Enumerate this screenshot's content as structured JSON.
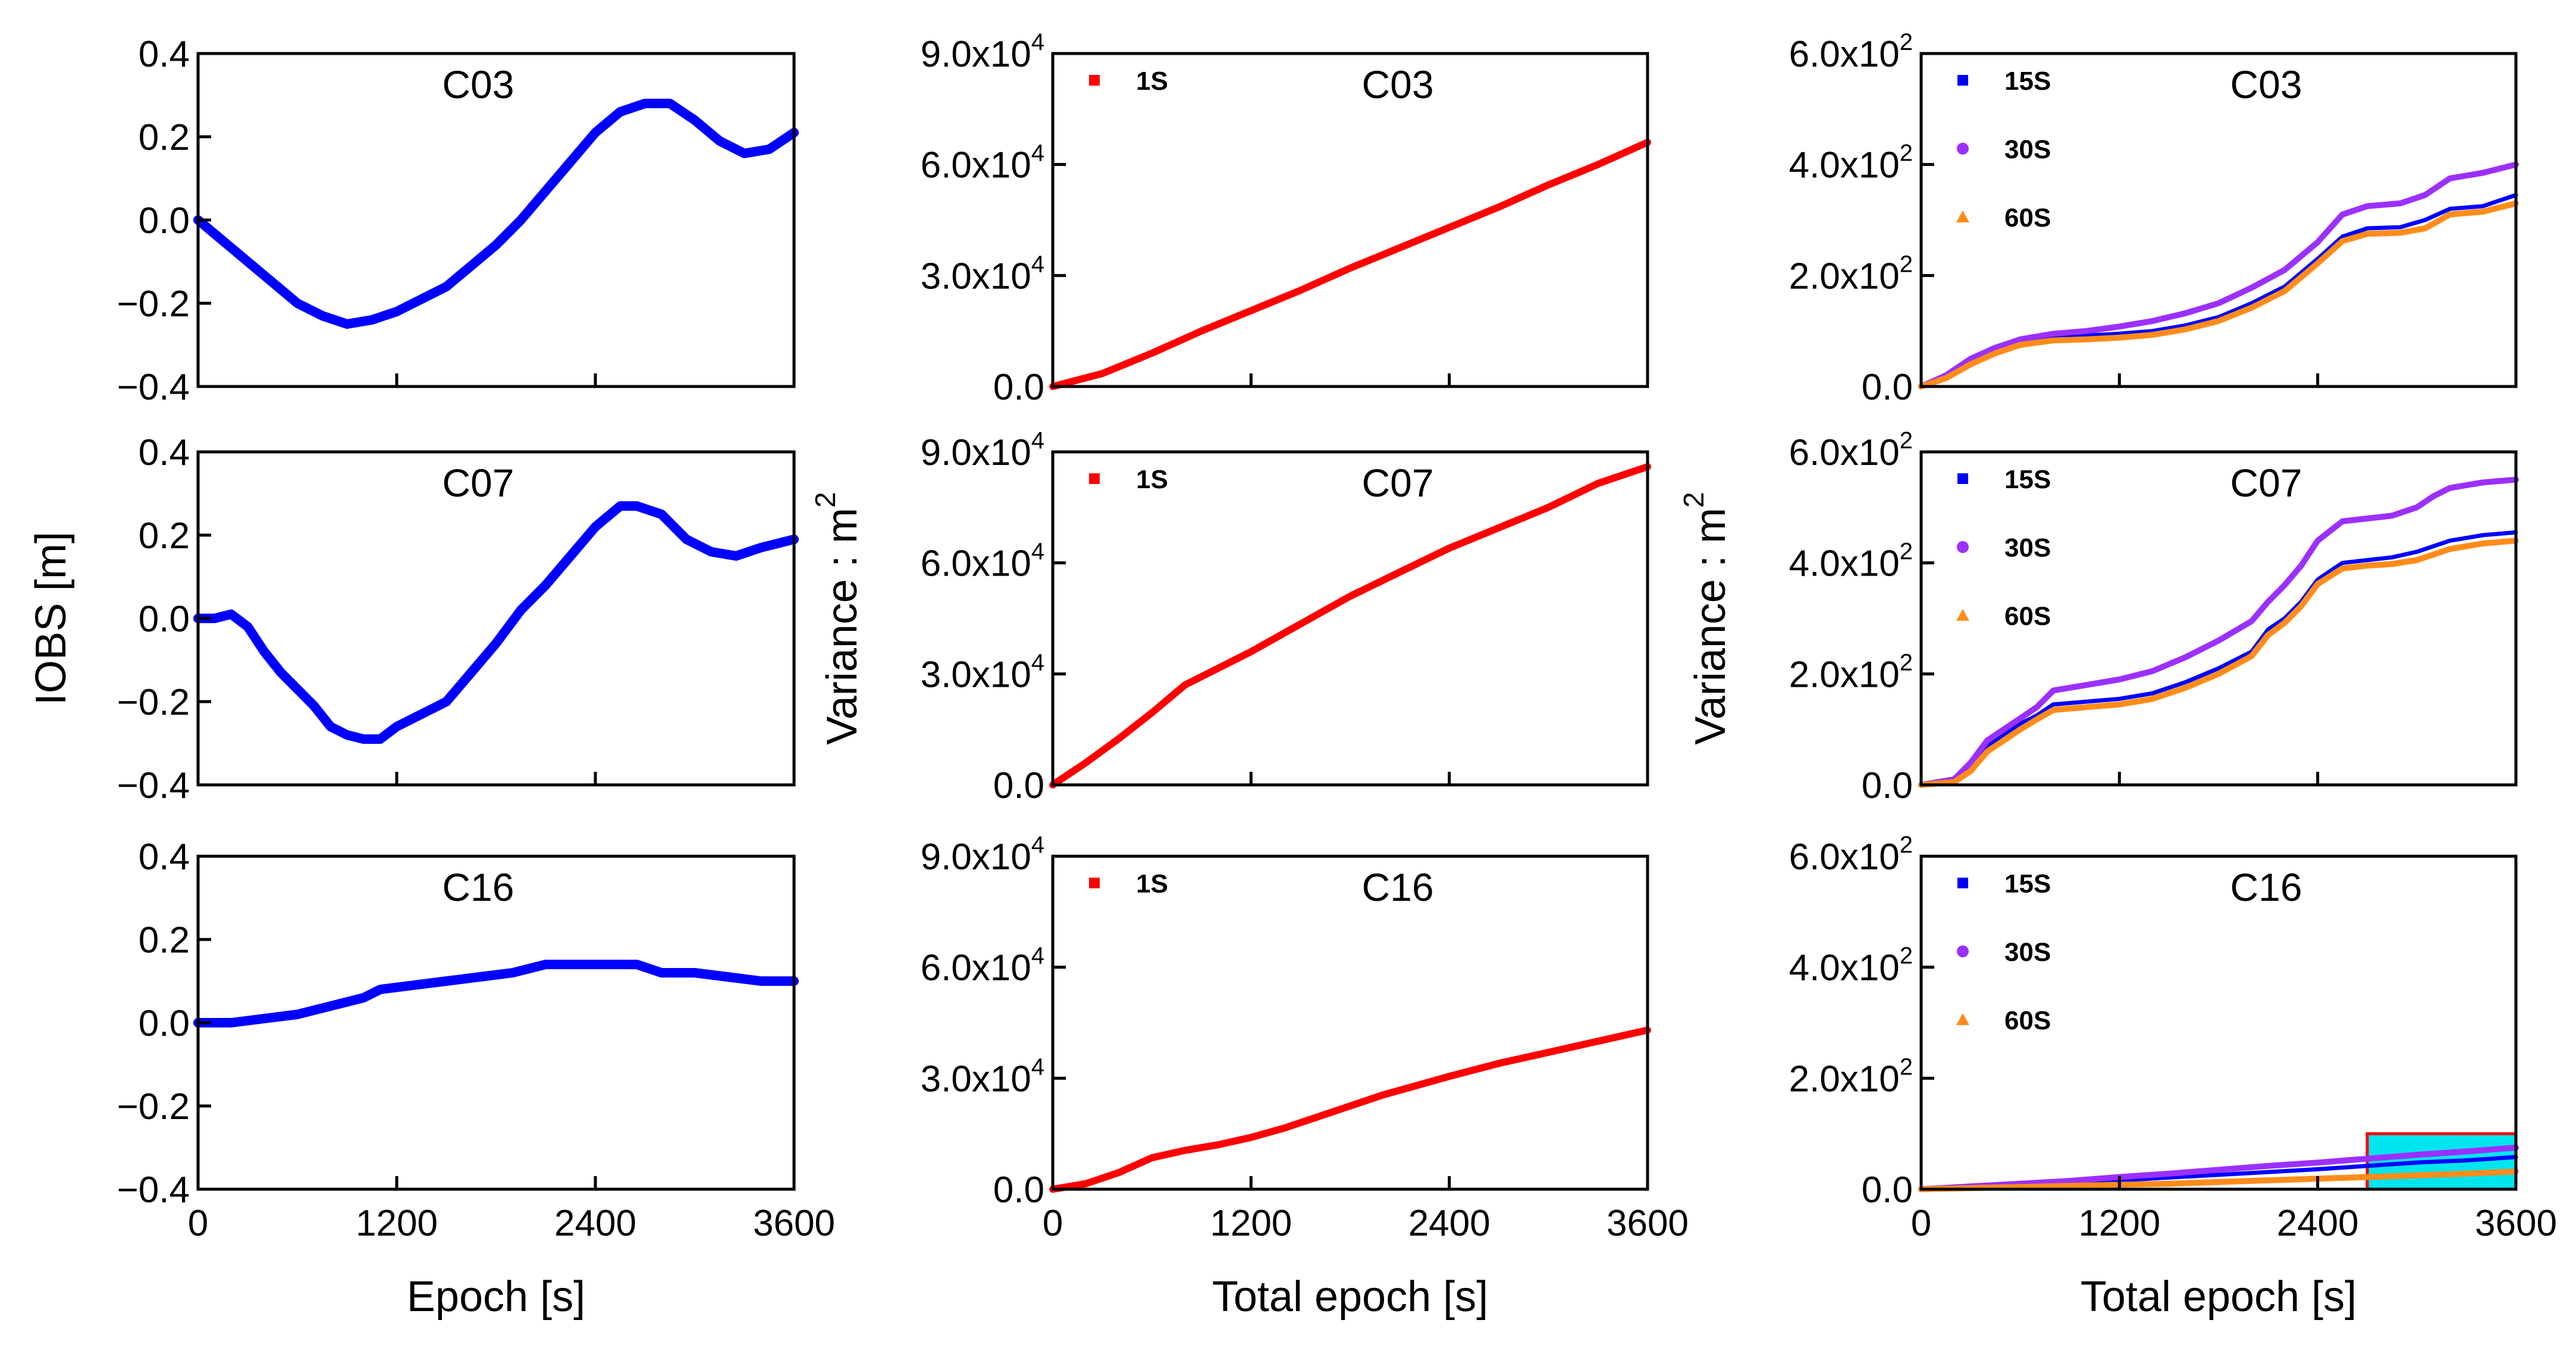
{
  "chart_data": [
    {
      "type": "line",
      "title": "C03",
      "xlabel": "",
      "ylabel": "",
      "xlim": [
        0,
        3600
      ],
      "ylim": [
        -0.4,
        0.4
      ],
      "xticks": [
        "0",
        "1200",
        "2400",
        "3600"
      ],
      "yticks": [
        "0.4",
        "0.2",
        "0.0",
        "−0.2",
        "−0.4"
      ],
      "series": [
        {
          "color": "#0000ff",
          "x": [
            0,
            150,
            300,
            450,
            600,
            750,
            900,
            1050,
            1200,
            1350,
            1500,
            1650,
            1800,
            1950,
            2100,
            2250,
            2400,
            2550,
            2700,
            2850,
            3000,
            3150,
            3300,
            3450,
            3600
          ],
          "y": [
            0.0,
            -0.05,
            -0.1,
            -0.15,
            -0.2,
            -0.23,
            -0.25,
            -0.24,
            -0.22,
            -0.19,
            -0.16,
            -0.11,
            -0.06,
            0.0,
            0.07,
            0.14,
            0.21,
            0.26,
            0.28,
            0.28,
            0.24,
            0.19,
            0.16,
            0.17,
            0.21
          ]
        }
      ]
    },
    {
      "type": "line",
      "title": "C07",
      "xlabel": "",
      "ylabel": "IOBS  [m]",
      "xlim": [
        0,
        3600
      ],
      "ylim": [
        -0.4,
        0.4
      ],
      "xticks": [
        "0",
        "1200",
        "2400",
        "3600"
      ],
      "yticks": [
        "0.4",
        "0.2",
        "0.0",
        "−0.2",
        "−0.4"
      ],
      "series": [
        {
          "color": "#0000ff",
          "x": [
            0,
            100,
            200,
            300,
            400,
            500,
            600,
            700,
            800,
            900,
            1000,
            1100,
            1200,
            1350,
            1500,
            1650,
            1800,
            1950,
            2100,
            2250,
            2400,
            2550,
            2650,
            2800,
            2950,
            3100,
            3250,
            3400,
            3500,
            3600
          ],
          "y": [
            0.0,
            0.0,
            0.01,
            -0.02,
            -0.08,
            -0.13,
            -0.17,
            -0.21,
            -0.26,
            -0.28,
            -0.29,
            -0.29,
            -0.26,
            -0.23,
            -0.2,
            -0.13,
            -0.06,
            0.02,
            0.08,
            0.15,
            0.22,
            0.27,
            0.27,
            0.25,
            0.19,
            0.16,
            0.15,
            0.17,
            0.18,
            0.19
          ]
        }
      ]
    },
    {
      "type": "line",
      "title": "C16",
      "xlabel": "Epoch [s]",
      "ylabel": "",
      "xlim": [
        0,
        3600
      ],
      "ylim": [
        -0.4,
        0.4
      ],
      "xticks": [
        "0",
        "1200",
        "2400",
        "3600"
      ],
      "yticks": [
        "0.4",
        "0.2",
        "0.0",
        "−0.2",
        "−0.4"
      ],
      "series": [
        {
          "color": "#0000ff",
          "x": [
            0,
            200,
            400,
            600,
            800,
            1000,
            1100,
            1300,
            1500,
            1700,
            1900,
            2100,
            2300,
            2500,
            2650,
            2800,
            3000,
            3200,
            3400,
            3600
          ],
          "y": [
            0.0,
            0.0,
            0.01,
            0.02,
            0.04,
            0.06,
            0.08,
            0.09,
            0.1,
            0.11,
            0.12,
            0.14,
            0.14,
            0.14,
            0.14,
            0.12,
            0.12,
            0.11,
            0.1,
            0.1
          ]
        }
      ]
    },
    {
      "type": "line",
      "title": "C03",
      "xlabel": "",
      "ylabel": "",
      "xlim": [
        0,
        3600
      ],
      "ylim": [
        0,
        90000
      ],
      "xticks": [
        "0",
        "1200",
        "2400",
        "3600"
      ],
      "yticks": [
        "9.0x10^4",
        "6.0x10^4",
        "3.0x10^4",
        "0.0"
      ],
      "legend": "top-left",
      "series": [
        {
          "name": "1S",
          "color": "#ff0000",
          "marker": "square",
          "x": [
            0,
            300,
            600,
            900,
            1200,
            1500,
            1800,
            2100,
            2400,
            2700,
            3000,
            3300,
            3600
          ],
          "y": [
            0,
            3500,
            9000,
            15000,
            20500,
            26000,
            32000,
            37500,
            43000,
            48500,
            54500,
            60000,
            66000
          ]
        }
      ]
    },
    {
      "type": "line",
      "title": "C07",
      "xlabel": "",
      "ylabel": "Variance : m2",
      "xlim": [
        0,
        3600
      ],
      "ylim": [
        0,
        90000
      ],
      "xticks": [
        "0",
        "1200",
        "2400",
        "3600"
      ],
      "yticks": [
        "9.0x10^4",
        "6.0x10^4",
        "3.0x10^4",
        "0.0"
      ],
      "legend": "top-left",
      "series": [
        {
          "name": "1S",
          "color": "#ff0000",
          "marker": "square",
          "x": [
            0,
            200,
            400,
            600,
            800,
            1000,
            1200,
            1500,
            1800,
            2100,
            2400,
            2700,
            3000,
            3300,
            3600
          ],
          "y": [
            0,
            6000,
            12500,
            19500,
            27000,
            31500,
            36000,
            43500,
            51000,
            57500,
            64000,
            69500,
            75000,
            81500,
            86000
          ]
        }
      ]
    },
    {
      "type": "line",
      "title": "C16",
      "xlabel": "Total epoch [s]",
      "ylabel": "",
      "xlim": [
        0,
        3600
      ],
      "ylim": [
        0,
        90000
      ],
      "xticks": [
        "0",
        "1200",
        "2400",
        "3600"
      ],
      "yticks": [
        "9.0x10^4",
        "6.0x10^4",
        "3.0x10^4",
        "0.0"
      ],
      "legend": "top-left",
      "series": [
        {
          "name": "1S",
          "color": "#ff0000",
          "marker": "square",
          "x": [
            0,
            200,
            400,
            600,
            800,
            1000,
            1200,
            1400,
            1600,
            1800,
            2000,
            2200,
            2400,
            2700,
            3000,
            3300,
            3600
          ],
          "y": [
            0,
            1500,
            4500,
            8500,
            10500,
            12000,
            14000,
            16500,
            19500,
            22500,
            25500,
            28000,
            30500,
            34000,
            37000,
            40000,
            43000
          ]
        }
      ]
    },
    {
      "type": "line",
      "title": "C03",
      "xlabel": "",
      "ylabel": "",
      "xlim": [
        0,
        3600
      ],
      "ylim": [
        0,
        600
      ],
      "xticks": [
        "0",
        "1200",
        "2400",
        "3600"
      ],
      "yticks": [
        "6.0x10^2",
        "4.0x10^2",
        "2.0x10^2",
        "0.0"
      ],
      "legend": "top-left",
      "series": [
        {
          "name": "15S",
          "color": "#0000ff",
          "marker": "square",
          "x": [
            0,
            150,
            300,
            450,
            600,
            800,
            1000,
            1200,
            1400,
            1600,
            1800,
            2000,
            2200,
            2400,
            2550,
            2700,
            2900,
            3050,
            3200,
            3400,
            3600
          ],
          "y": [
            0,
            20,
            45,
            65,
            80,
            90,
            92,
            95,
            100,
            110,
            125,
            150,
            180,
            230,
            270,
            285,
            287,
            300,
            320,
            325,
            345
          ]
        },
        {
          "name": "30S",
          "color": "#9b30ff",
          "marker": "circle",
          "x": [
            0,
            150,
            300,
            450,
            600,
            800,
            1000,
            1200,
            1400,
            1600,
            1800,
            2000,
            2200,
            2400,
            2550,
            2700,
            2900,
            3050,
            3200,
            3400,
            3600
          ],
          "y": [
            0,
            20,
            50,
            70,
            85,
            95,
            100,
            108,
            118,
            132,
            150,
            178,
            210,
            260,
            310,
            325,
            330,
            345,
            375,
            385,
            400
          ]
        },
        {
          "name": "60S",
          "color": "#ff8c1a",
          "marker": "triangle",
          "x": [
            0,
            150,
            300,
            450,
            600,
            800,
            1000,
            1200,
            1400,
            1600,
            1800,
            2000,
            2200,
            2400,
            2550,
            2700,
            2900,
            3050,
            3200,
            3400,
            3600
          ],
          "y": [
            0,
            15,
            40,
            60,
            75,
            83,
            85,
            88,
            93,
            103,
            118,
            142,
            172,
            222,
            262,
            275,
            277,
            285,
            310,
            315,
            330
          ]
        }
      ]
    },
    {
      "type": "line",
      "title": "C07",
      "xlabel": "",
      "ylabel": "Variance : m2",
      "xlim": [
        0,
        3600
      ],
      "ylim": [
        0,
        600
      ],
      "xticks": [
        "0",
        "1200",
        "2400",
        "3600"
      ],
      "yticks": [
        "6.0x10^2",
        "4.0x10^2",
        "2.0x10^2",
        "0.0"
      ],
      "legend": "top-left",
      "series": [
        {
          "name": "15S",
          "color": "#0000ff",
          "marker": "square",
          "x": [
            0,
            200,
            300,
            400,
            500,
            600,
            700,
            800,
            1000,
            1200,
            1400,
            1600,
            1800,
            2000,
            2100,
            2200,
            2300,
            2400,
            2550,
            2700,
            2850,
            3000,
            3100,
            3200,
            3300,
            3400,
            3600
          ],
          "y": [
            0,
            5,
            30,
            70,
            90,
            110,
            125,
            145,
            150,
            155,
            165,
            185,
            210,
            240,
            280,
            300,
            330,
            370,
            400,
            405,
            410,
            420,
            430,
            440,
            445,
            450,
            455
          ]
        },
        {
          "name": "30S",
          "color": "#9b30ff",
          "marker": "circle",
          "x": [
            0,
            200,
            300,
            400,
            500,
            600,
            700,
            800,
            1000,
            1200,
            1400,
            1600,
            1800,
            2000,
            2100,
            2200,
            2300,
            2400,
            2550,
            2700,
            2850,
            3000,
            3100,
            3200,
            3300,
            3400,
            3600
          ],
          "y": [
            0,
            10,
            40,
            80,
            100,
            120,
            140,
            170,
            180,
            190,
            205,
            230,
            260,
            295,
            330,
            360,
            395,
            440,
            475,
            480,
            485,
            500,
            520,
            535,
            540,
            545,
            550
          ]
        },
        {
          "name": "60S",
          "color": "#ff8c1a",
          "marker": "triangle",
          "x": [
            0,
            200,
            300,
            400,
            500,
            600,
            700,
            800,
            1000,
            1200,
            1400,
            1600,
            1800,
            2000,
            2100,
            2200,
            2300,
            2400,
            2550,
            2700,
            2850,
            3000,
            3100,
            3200,
            3300,
            3400,
            3600
          ],
          "y": [
            0,
            5,
            25,
            60,
            80,
            100,
            118,
            135,
            140,
            145,
            155,
            175,
            200,
            232,
            270,
            292,
            322,
            362,
            390,
            395,
            398,
            405,
            415,
            425,
            430,
            435,
            440
          ]
        }
      ]
    },
    {
      "type": "line",
      "title": "C16",
      "xlabel": "Total epoch [s]",
      "ylabel": "",
      "xlim": [
        0,
        3600
      ],
      "ylim": [
        0,
        600
      ],
      "xticks": [
        "0",
        "1200",
        "2400",
        "3600"
      ],
      "yticks": [
        "6.0x10^2",
        "4.0x10^2",
        "2.0x10^2",
        "0.0"
      ],
      "legend": "top-left",
      "series": [
        {
          "name": "15S",
          "color": "#0000ff",
          "marker": "square",
          "x": [
            0,
            300,
            600,
            900,
            1200,
            1500,
            1800,
            2100,
            2400,
            2700,
            3000,
            3300,
            3600
          ],
          "y": [
            0,
            3,
            7,
            11,
            16,
            21,
            26,
            31,
            36,
            42,
            48,
            52,
            58
          ]
        },
        {
          "name": "30S",
          "color": "#9b30ff",
          "marker": "circle",
          "x": [
            0,
            300,
            600,
            900,
            1200,
            1500,
            1800,
            2100,
            2400,
            2700,
            3000,
            3300,
            3600
          ],
          "y": [
            0,
            5,
            10,
            15,
            22,
            28,
            35,
            42,
            48,
            55,
            62,
            68,
            75
          ]
        },
        {
          "name": "60S",
          "color": "#ff8c1a",
          "marker": "triangle",
          "x": [
            0,
            300,
            600,
            900,
            1200,
            1500,
            1800,
            2100,
            2400,
            2700,
            3000,
            3300,
            3600
          ],
          "y": [
            0,
            2,
            4,
            6,
            8,
            10,
            13,
            16,
            19,
            22,
            25,
            28,
            32
          ]
        }
      ],
      "highlight_box": {
        "x": [
          2700,
          3600
        ],
        "y": [
          0,
          100
        ],
        "fill": "#00e5ee",
        "stroke": "#ff0000"
      }
    }
  ]
}
